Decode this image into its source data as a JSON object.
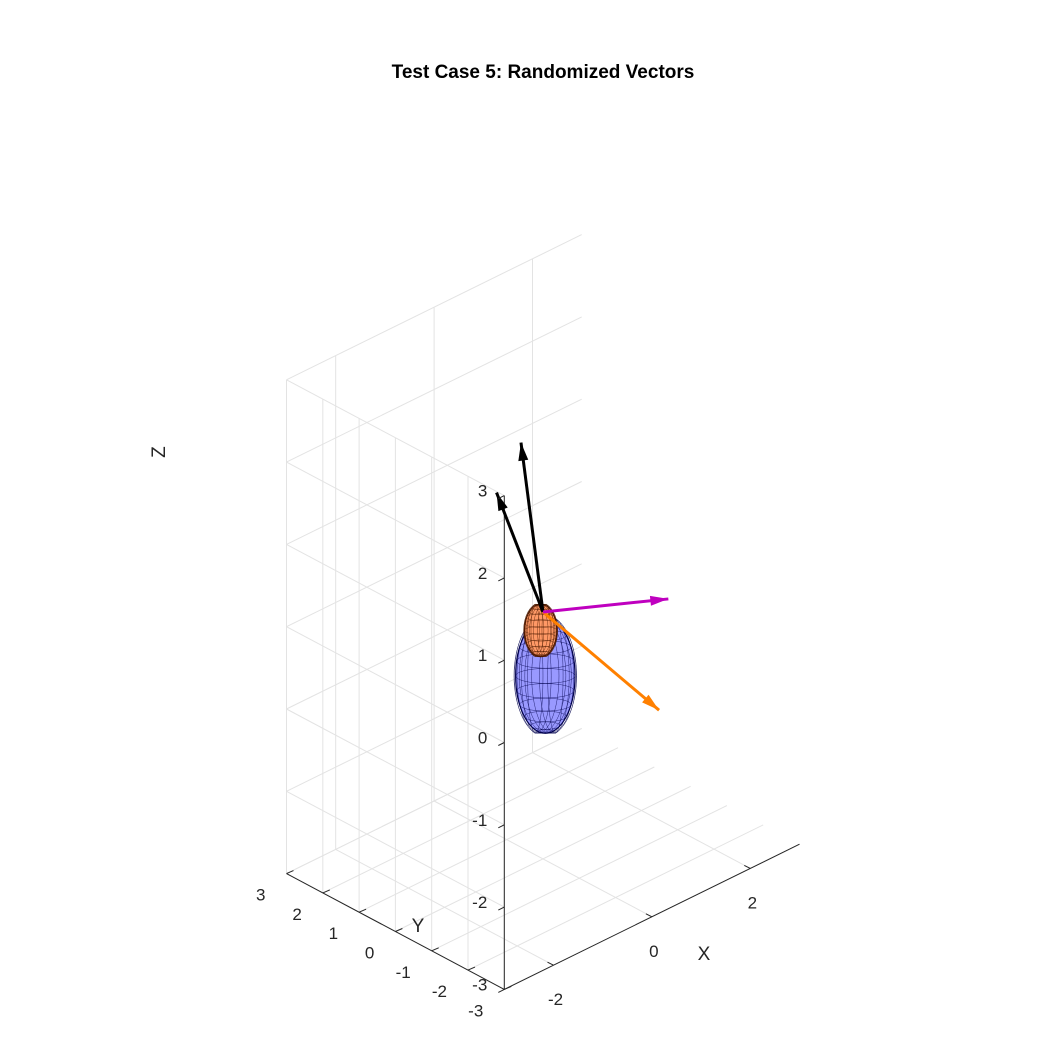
{
  "chart_data": {
    "type": "3d-quiver",
    "title": "Test Case 5: Randomized Vectors",
    "xlabel": "X",
    "ylabel": "Y",
    "zlabel": "Z",
    "xlim": [
      -3,
      3
    ],
    "ylim": [
      -3,
      3
    ],
    "zlim": [
      -3,
      3
    ],
    "x_ticks": [
      -2,
      0,
      2
    ],
    "y_ticks": [
      -3,
      -2,
      -1,
      0,
      1,
      2,
      3
    ],
    "z_ticks": [
      -3,
      -2,
      -1,
      0,
      1,
      2,
      3
    ],
    "grid": true,
    "view": {
      "azimuth_deg": -37.5,
      "elevation_deg": 30
    },
    "vectors": [
      {
        "color": "#000000",
        "start": [
          0,
          0,
          0
        ],
        "end": [
          -0.3,
          0.2,
          2.1
        ]
      },
      {
        "color": "#000000",
        "start": [
          0,
          0,
          0
        ],
        "end": [
          0.9,
          2.5,
          0.6
        ]
      },
      {
        "color": "#ff8000",
        "start": [
          0,
          0,
          0
        ],
        "end": [
          1.4,
          -1.3,
          -1.3
        ]
      },
      {
        "color": "#bf00bf",
        "start": [
          0,
          0,
          0
        ],
        "end": [
          2.4,
          -0.2,
          -0.5
        ]
      }
    ],
    "surfaces": [
      {
        "shape": "ellipsoid",
        "center": [
          -0.1,
          -0.2,
          -0.7
        ],
        "radii": [
          0.55,
          0.55,
          0.7
        ],
        "color": "#9999ff",
        "edge_color": "#00004d"
      },
      {
        "shape": "ellipsoid",
        "center": [
          0.1,
          0.2,
          -0.3
        ],
        "radii": [
          0.3,
          0.3,
          0.32
        ],
        "color": "#ff9966",
        "edge_color": "#4d1a00"
      }
    ]
  }
}
